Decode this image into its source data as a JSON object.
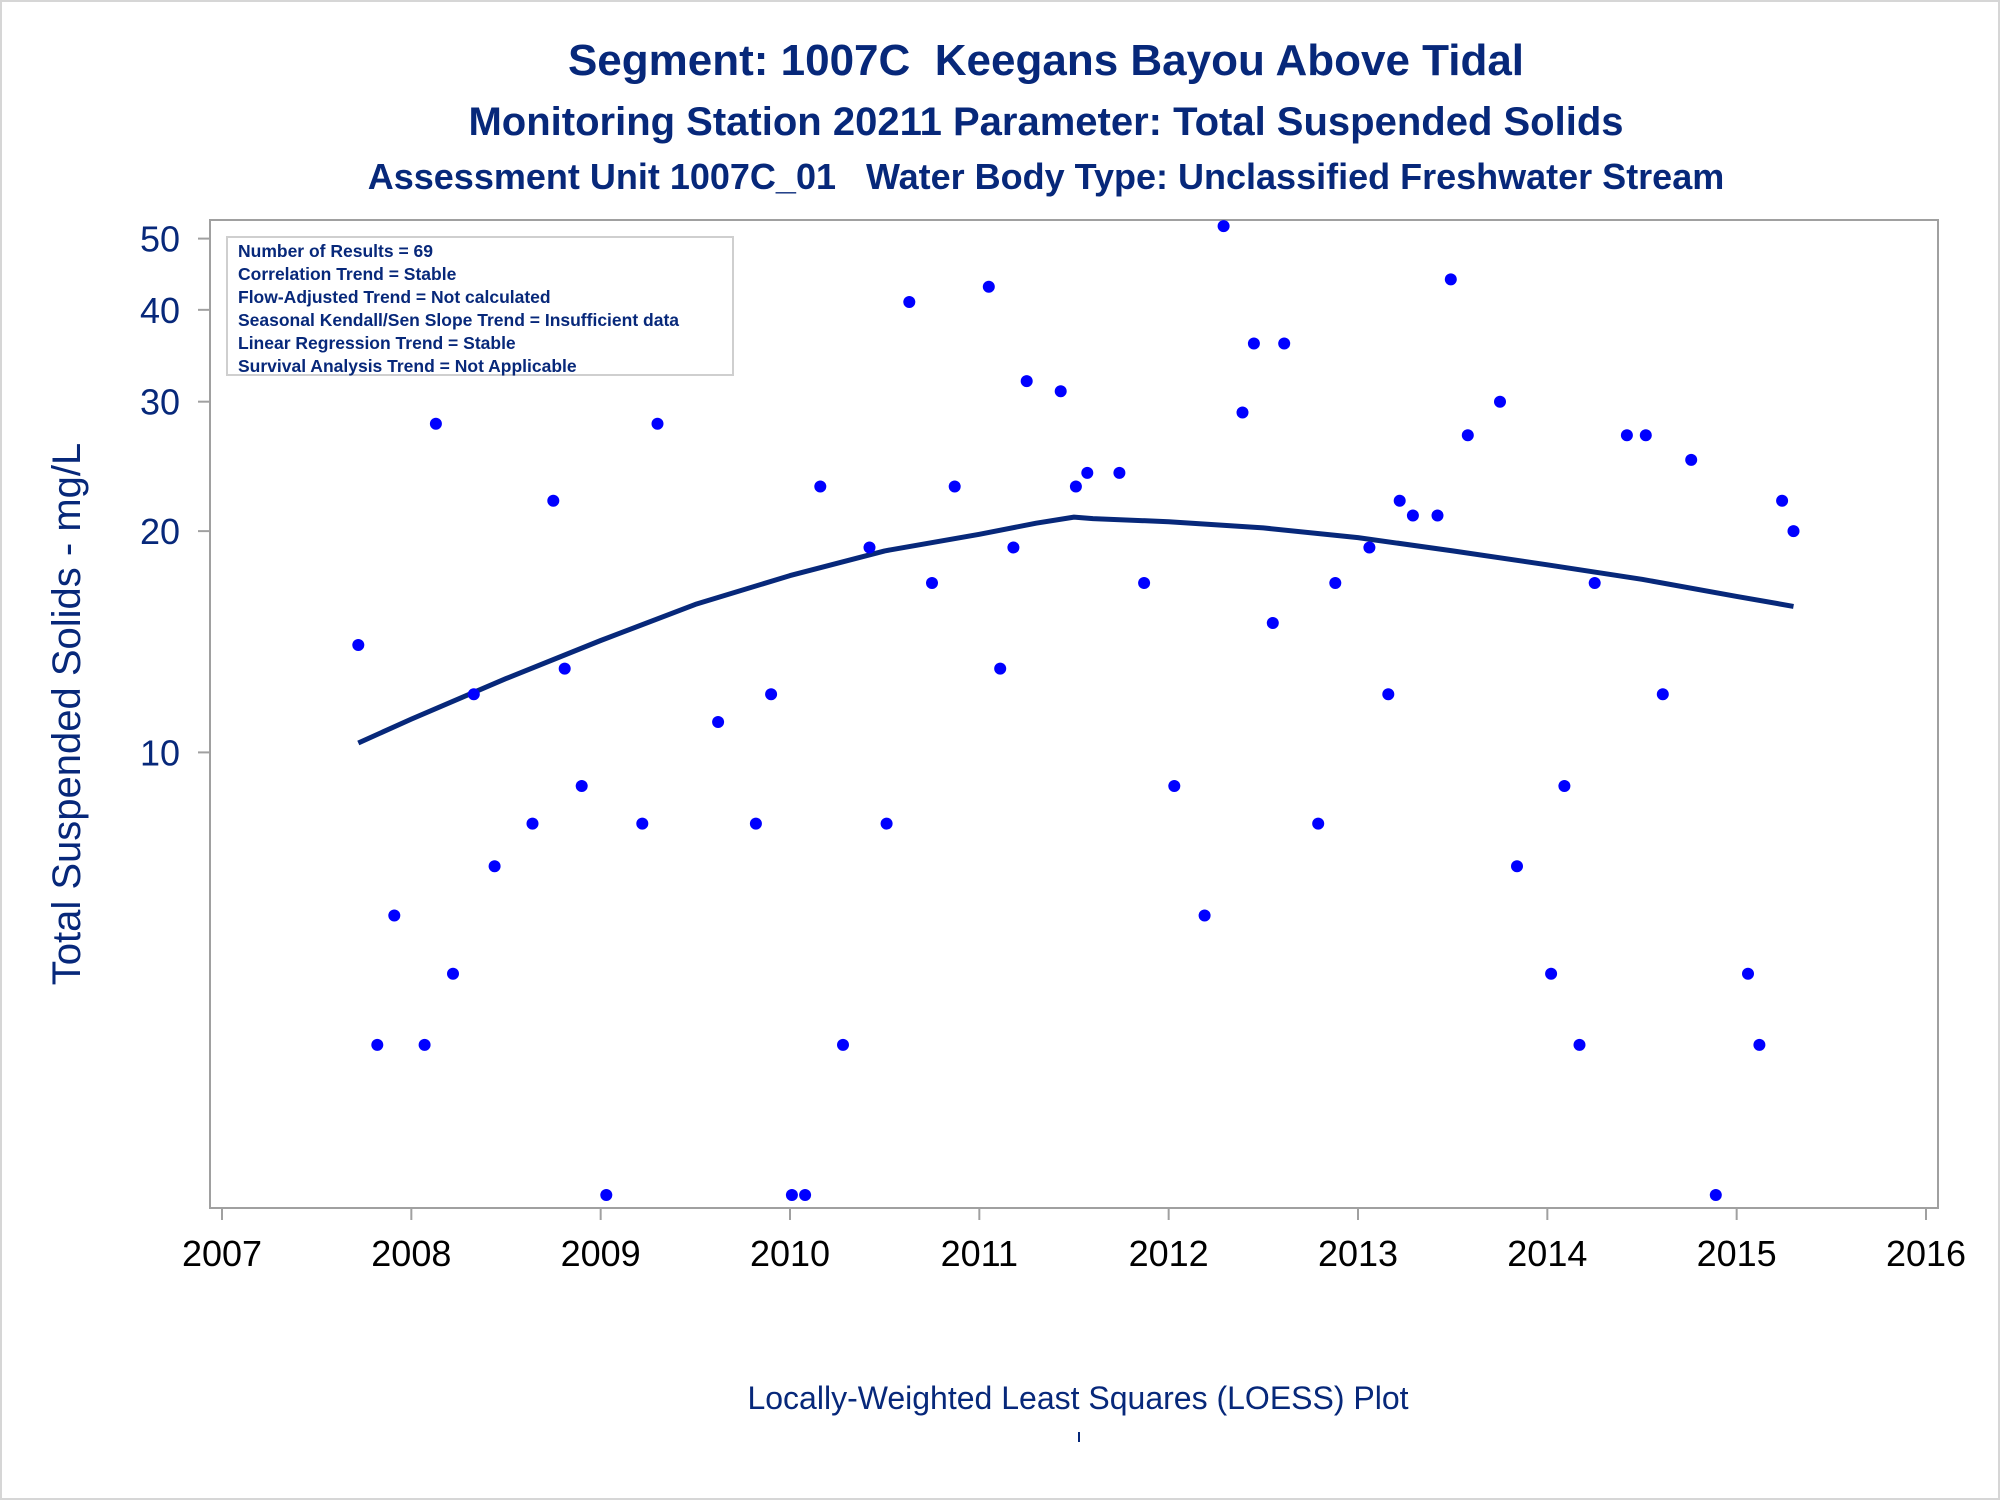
{
  "titles": {
    "line1": "Segment: 1007C  Keegans Bayou Above Tidal",
    "line2": "Monitoring Station 20211 Parameter: Total Suspended Solids",
    "line3": "Assessment Unit 1007C_01   Water Body Type: Unclassified Freshwater Stream"
  },
  "stats": [
    "Number of Results = 69",
    "Correlation Trend = Stable",
    "Flow-Adjusted Trend = Not calculated",
    "Seasonal Kendall/Sen Slope Trend = Insufficient data",
    "Linear Regression Trend = Stable",
    "Survival Analysis Trend = Not Applicable"
  ],
  "footnote": "Locally-Weighted Least Squares (LOESS) Plot",
  "colors": {
    "text": "#07287a",
    "point": "#0000ff",
    "line": "#07287a",
    "frame": "#a0a0a0"
  },
  "chart_data": {
    "type": "scatter",
    "title": "",
    "xlabel": "",
    "ylabel": "Total Suspended Solids - mg/L",
    "yscale": "log",
    "xlim": [
      2007,
      2016
    ],
    "ylim": [
      2.4,
      53
    ],
    "xticks": [
      2007,
      2008,
      2009,
      2010,
      2011,
      2012,
      2013,
      2014,
      2015,
      2016
    ],
    "yticks": [
      10,
      20,
      30,
      40,
      50
    ],
    "grid": false,
    "legend": "none",
    "series": [
      {
        "kind": "points",
        "x": [
          2007.72,
          2007.82,
          2007.91,
          2008.07,
          2008.13,
          2008.22,
          2008.33,
          2008.44,
          2008.64,
          2008.75,
          2008.81,
          2008.9,
          2009.03,
          2009.22,
          2009.3,
          2009.46,
          2009.56,
          2009.62,
          2009.82,
          2009.9,
          2010.01,
          2010.08,
          2010.16,
          2010.28,
          2010.42,
          2010.51,
          2010.63,
          2010.75,
          2010.87,
          2011.05,
          2011.11,
          2011.18,
          2011.25,
          2011.43,
          2011.51,
          2011.57,
          2011.74,
          2011.87,
          2012.03,
          2012.19,
          2012.29,
          2012.39,
          2012.45,
          2012.55,
          2012.61,
          2012.79,
          2012.88,
          2013.06,
          2013.16,
          2013.22,
          2013.29,
          2013.42,
          2013.49,
          2013.58,
          2013.75,
          2013.84,
          2014.02,
          2014.09,
          2014.17,
          2014.25,
          2014.42,
          2014.52,
          2014.61,
          2014.76,
          2014.89,
          2015.06,
          2015.12,
          2015.24,
          2015.3
        ],
        "y": [
          14,
          4,
          6,
          4,
          28,
          5,
          12,
          7,
          8,
          22,
          13,
          9,
          2.5,
          8,
          28,
          48,
          37,
          11,
          8,
          12,
          2.5,
          2.5,
          23,
          4,
          19,
          8,
          41,
          17,
          23,
          43,
          13,
          19,
          32,
          31,
          23,
          24,
          24,
          17,
          9,
          6,
          52,
          29,
          36,
          15,
          36,
          8,
          17,
          19,
          12,
          22,
          21,
          21,
          44,
          27,
          30,
          7,
          5,
          9,
          4,
          17,
          27,
          27,
          12,
          25,
          2.5,
          5,
          4,
          22,
          20
        ]
      },
      {
        "kind": "loess",
        "x": [
          2007.72,
          2008.0,
          2008.5,
          2009.0,
          2009.5,
          2010.0,
          2010.5,
          2011.0,
          2011.3,
          2011.5,
          2011.6,
          2012.0,
          2012.5,
          2013.0,
          2013.5,
          2014.0,
          2014.5,
          2015.0,
          2015.3
        ],
        "y": [
          10.3,
          11.1,
          12.6,
          14.2,
          15.9,
          17.4,
          18.8,
          19.8,
          20.5,
          20.9,
          20.8,
          20.6,
          20.2,
          19.6,
          18.8,
          18.0,
          17.2,
          16.3,
          15.8
        ]
      }
    ]
  }
}
